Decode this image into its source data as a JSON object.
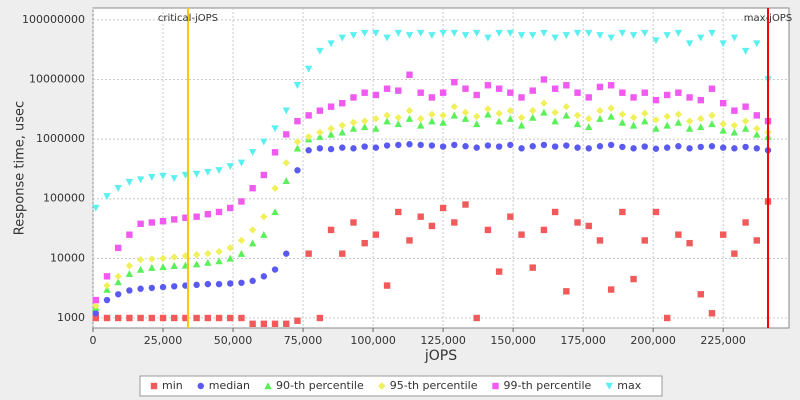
{
  "chart_data": {
    "type": "scatter",
    "xlabel": "jOPS",
    "ylabel": "Response time, usec",
    "log_y": true,
    "grid": true,
    "xlim": [
      0,
      248500
    ],
    "ylim": [
      680,
      158000000
    ],
    "xticks": [
      0,
      {
        "value": 25000,
        "label": "25,000"
      },
      {
        "value": 50000,
        "label": "50,000"
      },
      {
        "value": 75000,
        "label": "75,000"
      },
      {
        "value": 100000,
        "label": "100,000"
      },
      {
        "value": 125000,
        "label": "125,000"
      },
      {
        "value": 150000,
        "label": "150,000"
      },
      {
        "value": 175000,
        "label": "175,000"
      },
      {
        "value": 200000,
        "label": "200,000"
      },
      {
        "value": 225000,
        "label": "225,000"
      }
    ],
    "yticks": [
      1000,
      10000,
      100000,
      1000000,
      10000000,
      100000000
    ],
    "annotations": [
      {
        "label": "critical-jOPS",
        "x": 33900,
        "color": "#ffc800"
      },
      {
        "label": "max-jOPS",
        "x": 241000,
        "color": "#ff0000"
      }
    ],
    "x": [
      1000,
      5000,
      9000,
      13000,
      17000,
      21000,
      25000,
      29000,
      33000,
      37000,
      41000,
      45000,
      49000,
      53000,
      57000,
      61000,
      65000,
      69000,
      73000,
      77000,
      81000,
      85000,
      89000,
      93000,
      97000,
      101000,
      105000,
      109000,
      113000,
      117000,
      121000,
      125000,
      129000,
      133000,
      137000,
      141000,
      145000,
      149000,
      153000,
      157000,
      161000,
      165000,
      169000,
      173000,
      177000,
      181000,
      185000,
      189000,
      193000,
      197000,
      201000,
      205000,
      209000,
      213000,
      217000,
      221000,
      225000,
      229000,
      233000,
      237000,
      241000
    ],
    "series": [
      {
        "name": "min",
        "color": "#f05a5a",
        "marker": "square",
        "values": [
          1000,
          1000,
          1000,
          1000,
          1000,
          1000,
          1000,
          1000,
          1000,
          1000,
          1000,
          1000,
          1000,
          1000,
          800,
          800,
          800,
          800,
          900,
          12000,
          1000,
          30000,
          12000,
          40000,
          18000,
          25000,
          3500,
          60000,
          20000,
          50000,
          35000,
          70000,
          40000,
          80000,
          1000,
          30000,
          6000,
          50000,
          25000,
          7000,
          30000,
          60000,
          2800,
          40000,
          35000,
          20000,
          3000,
          60000,
          4500,
          20000,
          60000,
          1000,
          25000,
          18000,
          2500,
          1200,
          25000,
          12000,
          40000,
          20000,
          90000
        ]
      },
      {
        "name": "median",
        "color": "#5a5af0",
        "marker": "circle",
        "values": [
          1200,
          2000,
          2500,
          2900,
          3100,
          3200,
          3300,
          3400,
          3500,
          3600,
          3700,
          3700,
          3800,
          3900,
          4200,
          5000,
          6500,
          12000,
          300000,
          650000,
          700000,
          680000,
          720000,
          700000,
          750000,
          720000,
          780000,
          800000,
          820000,
          800000,
          780000,
          750000,
          800000,
          760000,
          720000,
          780000,
          750000,
          800000,
          700000,
          760000,
          800000,
          750000,
          780000,
          720000,
          700000,
          760000,
          800000,
          740000,
          700000,
          750000,
          690000,
          720000,
          760000,
          700000,
          740000,
          760000,
          720000,
          700000,
          740000,
          700000,
          650000
        ]
      },
      {
        "name": "90-th percentile",
        "color": "#5af05a",
        "marker": "triangle",
        "values": [
          1500,
          3000,
          4000,
          5500,
          6500,
          7000,
          7200,
          7500,
          7600,
          8000,
          8500,
          9000,
          10000,
          12000,
          18000,
          25000,
          60000,
          200000,
          700000,
          1000000,
          1100000,
          1200000,
          1300000,
          1500000,
          1600000,
          1500000,
          2000000,
          1800000,
          2200000,
          1700000,
          2000000,
          1900000,
          2500000,
          2200000,
          1800000,
          2600000,
          2000000,
          2200000,
          1700000,
          2300000,
          2800000,
          2000000,
          2500000,
          1800000,
          1600000,
          2200000,
          2400000,
          1900000,
          1700000,
          2000000,
          1500000,
          1700000,
          1900000,
          1500000,
          1600000,
          1800000,
          1400000,
          1300000,
          1500000,
          1200000,
          1100000
        ]
      },
      {
        "name": "95-th percentile",
        "color": "#f0f05a",
        "marker": "diamond",
        "values": [
          1600,
          3500,
          5000,
          7500,
          9500,
          9800,
          10000,
          10500,
          11000,
          11500,
          12000,
          13000,
          15000,
          20000,
          30000,
          50000,
          150000,
          400000,
          900000,
          1100000,
          1300000,
          1500000,
          1700000,
          1900000,
          2000000,
          2200000,
          2500000,
          2300000,
          3000000,
          2200000,
          2600000,
          2500000,
          3500000,
          2800000,
          2400000,
          3200000,
          2700000,
          3000000,
          2300000,
          3000000,
          4000000,
          2800000,
          3500000,
          2500000,
          2200000,
          3000000,
          3300000,
          2600000,
          2300000,
          2700000,
          2100000,
          2400000,
          2600000,
          2000000,
          2200000,
          2500000,
          1800000,
          1700000,
          2000000,
          1500000,
          1300000
        ]
      },
      {
        "name": "99-th percentile",
        "color": "#f05af0",
        "marker": "square",
        "values": [
          2000,
          5000,
          15000,
          25000,
          38000,
          40000,
          42000,
          45000,
          48000,
          50000,
          55000,
          60000,
          70000,
          90000,
          150000,
          250000,
          600000,
          1200000,
          2000000,
          2500000,
          3000000,
          3500000,
          4000000,
          5000000,
          6000000,
          5500000,
          7000000,
          6500000,
          12000000,
          6000000,
          5000000,
          6000000,
          9000000,
          7000000,
          5500000,
          8000000,
          7000000,
          6000000,
          5000000,
          6500000,
          10000000,
          7000000,
          8000000,
          6000000,
          5000000,
          7500000,
          8000000,
          6000000,
          5000000,
          6000000,
          4500000,
          5500000,
          6000000,
          5000000,
          4500000,
          7000000,
          4000000,
          3000000,
          3500000,
          2500000,
          2000000
        ]
      },
      {
        "name": "max",
        "color": "#5af0f0",
        "marker": "triangle-down",
        "values": [
          70000,
          110000,
          150000,
          190000,
          210000,
          230000,
          240000,
          220000,
          250000,
          260000,
          280000,
          300000,
          350000,
          400000,
          600000,
          900000,
          1500000,
          3000000,
          8000000,
          15000000,
          30000000,
          40000000,
          50000000,
          55000000,
          60000000,
          60000000,
          50000000,
          60000000,
          55000000,
          60000000,
          55000000,
          60000000,
          60000000,
          55000000,
          60000000,
          50000000,
          60000000,
          60000000,
          55000000,
          55000000,
          60000000,
          50000000,
          55000000,
          60000000,
          60000000,
          55000000,
          50000000,
          60000000,
          55000000,
          60000000,
          45000000,
          55000000,
          60000000,
          40000000,
          50000000,
          60000000,
          40000000,
          50000000,
          30000000,
          40000000,
          10000000
        ]
      }
    ]
  }
}
